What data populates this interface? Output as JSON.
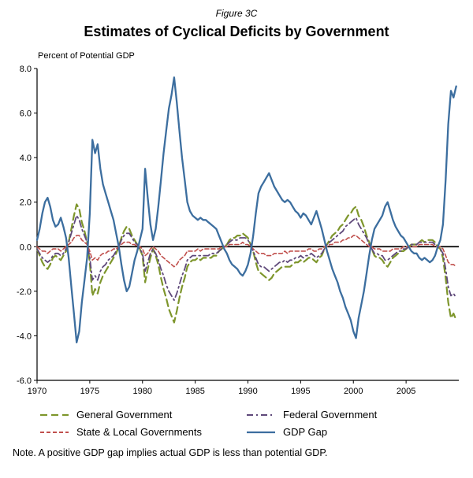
{
  "figure_label": "Figure 3C",
  "title": "Estimates of Cyclical Deficits by Government",
  "axis_label": "Percent of Potential GDP",
  "note": "Note. A positive GDP gap implies actual GDP is less than potential GDP.",
  "chart_data": {
    "type": "line",
    "title": "Estimates of Cyclical Deficits by Government",
    "ylabel": "Percent of Potential GDP",
    "ylim": [
      -6,
      8
    ],
    "ytick_step": 2,
    "xlim": [
      1970,
      2010
    ],
    "xticks": [
      1970,
      1975,
      1980,
      1985,
      1990,
      1995,
      2000,
      2005
    ],
    "x_start": 1970,
    "x_step": 0.25,
    "grid": false,
    "legend_position": "bottom",
    "series": [
      {
        "name": "General Government",
        "color": "#7E962C",
        "dash": "9 5",
        "width": 2.2,
        "values": [
          -0.1,
          -0.4,
          -0.7,
          -0.9,
          -1.0,
          -0.8,
          -0.5,
          -0.4,
          -0.5,
          -0.6,
          -0.4,
          -0.2,
          0.2,
          0.8,
          1.4,
          1.9,
          1.7,
          1.1,
          0.7,
          0.2,
          -0.7,
          -2.2,
          -1.9,
          -2.1,
          -1.6,
          -1.3,
          -1.1,
          -0.9,
          -0.7,
          -0.5,
          -0.3,
          0.0,
          0.4,
          0.7,
          0.9,
          0.8,
          0.5,
          0.3,
          0.1,
          -0.1,
          -0.4,
          -1.6,
          -1.0,
          -0.5,
          -0.1,
          -0.4,
          -0.8,
          -1.4,
          -1.9,
          -2.3,
          -2.8,
          -3.1,
          -3.4,
          -2.9,
          -2.3,
          -1.8,
          -1.4,
          -0.9,
          -0.7,
          -0.6,
          -0.6,
          -0.5,
          -0.6,
          -0.5,
          -0.5,
          -0.5,
          -0.5,
          -0.4,
          -0.4,
          -0.2,
          -0.1,
          0.0,
          0.1,
          0.3,
          0.4,
          0.4,
          0.5,
          0.5,
          0.6,
          0.5,
          0.4,
          0.1,
          -0.2,
          -0.7,
          -1.1,
          -1.2,
          -1.3,
          -1.4,
          -1.5,
          -1.4,
          -1.2,
          -1.1,
          -1.0,
          -0.9,
          -0.9,
          -0.9,
          -0.9,
          -0.8,
          -0.7,
          -0.7,
          -0.6,
          -0.7,
          -0.6,
          -0.5,
          -0.5,
          -0.6,
          -0.7,
          -0.5,
          -0.4,
          -0.1,
          0.1,
          0.3,
          0.5,
          0.6,
          0.7,
          0.9,
          1.0,
          1.2,
          1.4,
          1.5,
          1.7,
          1.8,
          1.4,
          1.2,
          0.9,
          0.5,
          0.2,
          -0.1,
          -0.4,
          -0.5,
          -0.5,
          -0.6,
          -0.8,
          -0.9,
          -0.7,
          -0.5,
          -0.4,
          -0.3,
          -0.2,
          -0.2,
          -0.1,
          0.0,
          0.1,
          0.1,
          0.1,
          0.2,
          0.3,
          0.2,
          0.3,
          0.3,
          0.3,
          0.2,
          0.0,
          -0.1,
          -0.5,
          -1.4,
          -2.5,
          -3.2,
          -3.0,
          -3.3
        ]
      },
      {
        "name": "Federal Government",
        "color": "#5F497A",
        "dash": "8 4 2 4",
        "width": 1.8,
        "values": [
          -0.1,
          -0.3,
          -0.5,
          -0.6,
          -0.7,
          -0.6,
          -0.4,
          -0.3,
          -0.3,
          -0.4,
          -0.3,
          -0.1,
          0.2,
          0.6,
          1.0,
          1.4,
          1.2,
          0.8,
          0.5,
          0.2,
          -0.5,
          -1.5,
          -1.3,
          -1.5,
          -1.1,
          -0.9,
          -0.8,
          -0.6,
          -0.5,
          -0.4,
          -0.2,
          0.0,
          0.3,
          0.5,
          0.6,
          0.6,
          0.4,
          0.2,
          0.1,
          -0.1,
          -0.3,
          -1.1,
          -0.7,
          -0.3,
          -0.1,
          -0.3,
          -0.6,
          -1.0,
          -1.3,
          -1.7,
          -2.0,
          -2.2,
          -2.4,
          -2.1,
          -1.7,
          -1.3,
          -1.0,
          -0.6,
          -0.5,
          -0.4,
          -0.4,
          -0.4,
          -0.4,
          -0.4,
          -0.4,
          -0.4,
          -0.3,
          -0.3,
          -0.3,
          -0.2,
          -0.1,
          0.0,
          0.1,
          0.2,
          0.3,
          0.3,
          0.3,
          0.4,
          0.4,
          0.4,
          0.3,
          0.1,
          -0.2,
          -0.5,
          -0.8,
          -0.9,
          -0.9,
          -1.0,
          -1.1,
          -1.0,
          -0.9,
          -0.8,
          -0.7,
          -0.7,
          -0.6,
          -0.7,
          -0.6,
          -0.6,
          -0.5,
          -0.5,
          -0.4,
          -0.5,
          -0.4,
          -0.4,
          -0.3,
          -0.4,
          -0.5,
          -0.4,
          -0.3,
          -0.1,
          0.1,
          0.2,
          0.3,
          0.4,
          0.5,
          0.6,
          0.7,
          0.9,
          1.0,
          1.1,
          1.2,
          1.3,
          1.0,
          0.8,
          0.6,
          0.4,
          0.1,
          -0.1,
          -0.3,
          -0.3,
          -0.4,
          -0.4,
          -0.6,
          -0.6,
          -0.5,
          -0.4,
          -0.3,
          -0.2,
          -0.2,
          -0.1,
          -0.1,
          0.0,
          0.1,
          0.1,
          0.1,
          0.2,
          0.2,
          0.2,
          0.2,
          0.2,
          0.2,
          0.1,
          0.0,
          -0.1,
          -0.3,
          -1.0,
          -1.8,
          -2.2,
          -2.1,
          -2.3
        ]
      },
      {
        "name": "State & Local Governments",
        "color": "#C0504D",
        "dash": "5 3",
        "width": 1.6,
        "values": [
          0.0,
          -0.1,
          -0.2,
          -0.2,
          -0.3,
          -0.2,
          -0.1,
          -0.1,
          -0.1,
          -0.2,
          -0.1,
          0.0,
          0.1,
          0.2,
          0.4,
          0.5,
          0.5,
          0.3,
          0.2,
          0.1,
          -0.2,
          -0.6,
          -0.5,
          -0.6,
          -0.4,
          -0.3,
          -0.3,
          -0.2,
          -0.2,
          -0.1,
          -0.1,
          0.0,
          0.1,
          0.2,
          0.2,
          0.2,
          0.1,
          0.1,
          0.0,
          0.0,
          -0.1,
          -0.4,
          -0.3,
          -0.1,
          0.0,
          -0.1,
          -0.2,
          -0.4,
          -0.5,
          -0.6,
          -0.7,
          -0.8,
          -0.9,
          -0.8,
          -0.6,
          -0.5,
          -0.4,
          -0.2,
          -0.2,
          -0.2,
          -0.2,
          -0.1,
          -0.2,
          -0.1,
          -0.1,
          -0.1,
          -0.1,
          -0.1,
          -0.1,
          -0.1,
          0.0,
          0.0,
          0.0,
          0.1,
          0.1,
          0.1,
          0.1,
          0.1,
          0.2,
          0.1,
          0.1,
          0.0,
          -0.1,
          -0.2,
          -0.3,
          -0.3,
          -0.3,
          -0.4,
          -0.4,
          -0.4,
          -0.3,
          -0.3,
          -0.3,
          -0.3,
          -0.2,
          -0.3,
          -0.2,
          -0.2,
          -0.2,
          -0.2,
          -0.2,
          -0.2,
          -0.2,
          -0.1,
          -0.1,
          -0.2,
          -0.2,
          -0.1,
          -0.1,
          0.0,
          0.0,
          0.1,
          0.1,
          0.2,
          0.2,
          0.2,
          0.3,
          0.3,
          0.4,
          0.4,
          0.5,
          0.5,
          0.4,
          0.3,
          0.2,
          0.1,
          0.0,
          0.0,
          -0.1,
          -0.1,
          -0.1,
          -0.2,
          -0.2,
          -0.2,
          -0.2,
          -0.1,
          -0.1,
          -0.1,
          -0.1,
          0.0,
          0.0,
          0.0,
          0.0,
          0.0,
          0.0,
          0.1,
          0.1,
          0.1,
          0.1,
          0.1,
          0.1,
          0.0,
          0.0,
          0.0,
          -0.1,
          -0.4,
          -0.7,
          -0.8,
          -0.8,
          -0.9
        ]
      },
      {
        "name": "GDP Gap",
        "color": "#3C6E9F",
        "dash": "",
        "width": 2.3,
        "values": [
          0.3,
          0.8,
          1.5,
          2.0,
          2.2,
          1.8,
          1.2,
          0.9,
          1.0,
          1.3,
          0.9,
          0.4,
          -0.5,
          -1.8,
          -3.0,
          -4.3,
          -3.8,
          -2.5,
          -1.5,
          -0.5,
          1.5,
          4.8,
          4.2,
          4.6,
          3.5,
          2.8,
          2.4,
          2.0,
          1.6,
          1.2,
          0.6,
          0.0,
          -0.8,
          -1.5,
          -2.0,
          -1.8,
          -1.2,
          -0.6,
          -0.2,
          0.3,
          0.8,
          3.5,
          2.2,
          1.0,
          0.3,
          0.8,
          1.8,
          3.0,
          4.2,
          5.2,
          6.2,
          6.8,
          7.6,
          6.5,
          5.2,
          4.0,
          3.0,
          2.0,
          1.6,
          1.4,
          1.3,
          1.2,
          1.3,
          1.2,
          1.2,
          1.1,
          1.0,
          0.9,
          0.8,
          0.5,
          0.2,
          -0.1,
          -0.3,
          -0.6,
          -0.8,
          -0.9,
          -1.0,
          -1.2,
          -1.3,
          -1.1,
          -0.8,
          -0.3,
          0.5,
          1.5,
          2.4,
          2.7,
          2.9,
          3.1,
          3.3,
          3.0,
          2.7,
          2.5,
          2.3,
          2.1,
          2.0,
          2.1,
          2.0,
          1.8,
          1.6,
          1.5,
          1.3,
          1.5,
          1.4,
          1.2,
          1.0,
          1.3,
          1.6,
          1.2,
          0.8,
          0.3,
          -0.2,
          -0.6,
          -1.0,
          -1.3,
          -1.6,
          -2.0,
          -2.3,
          -2.7,
          -3.0,
          -3.3,
          -3.8,
          -4.1,
          -3.2,
          -2.6,
          -2.0,
          -1.2,
          -0.4,
          0.3,
          0.8,
          1.0,
          1.2,
          1.4,
          1.8,
          2.0,
          1.6,
          1.2,
          0.9,
          0.7,
          0.5,
          0.4,
          0.2,
          0.0,
          -0.2,
          -0.3,
          -0.3,
          -0.5,
          -0.6,
          -0.5,
          -0.6,
          -0.7,
          -0.6,
          -0.4,
          0.0,
          0.3,
          1.0,
          3.0,
          5.5,
          7.0,
          6.7,
          7.2
        ]
      }
    ]
  }
}
